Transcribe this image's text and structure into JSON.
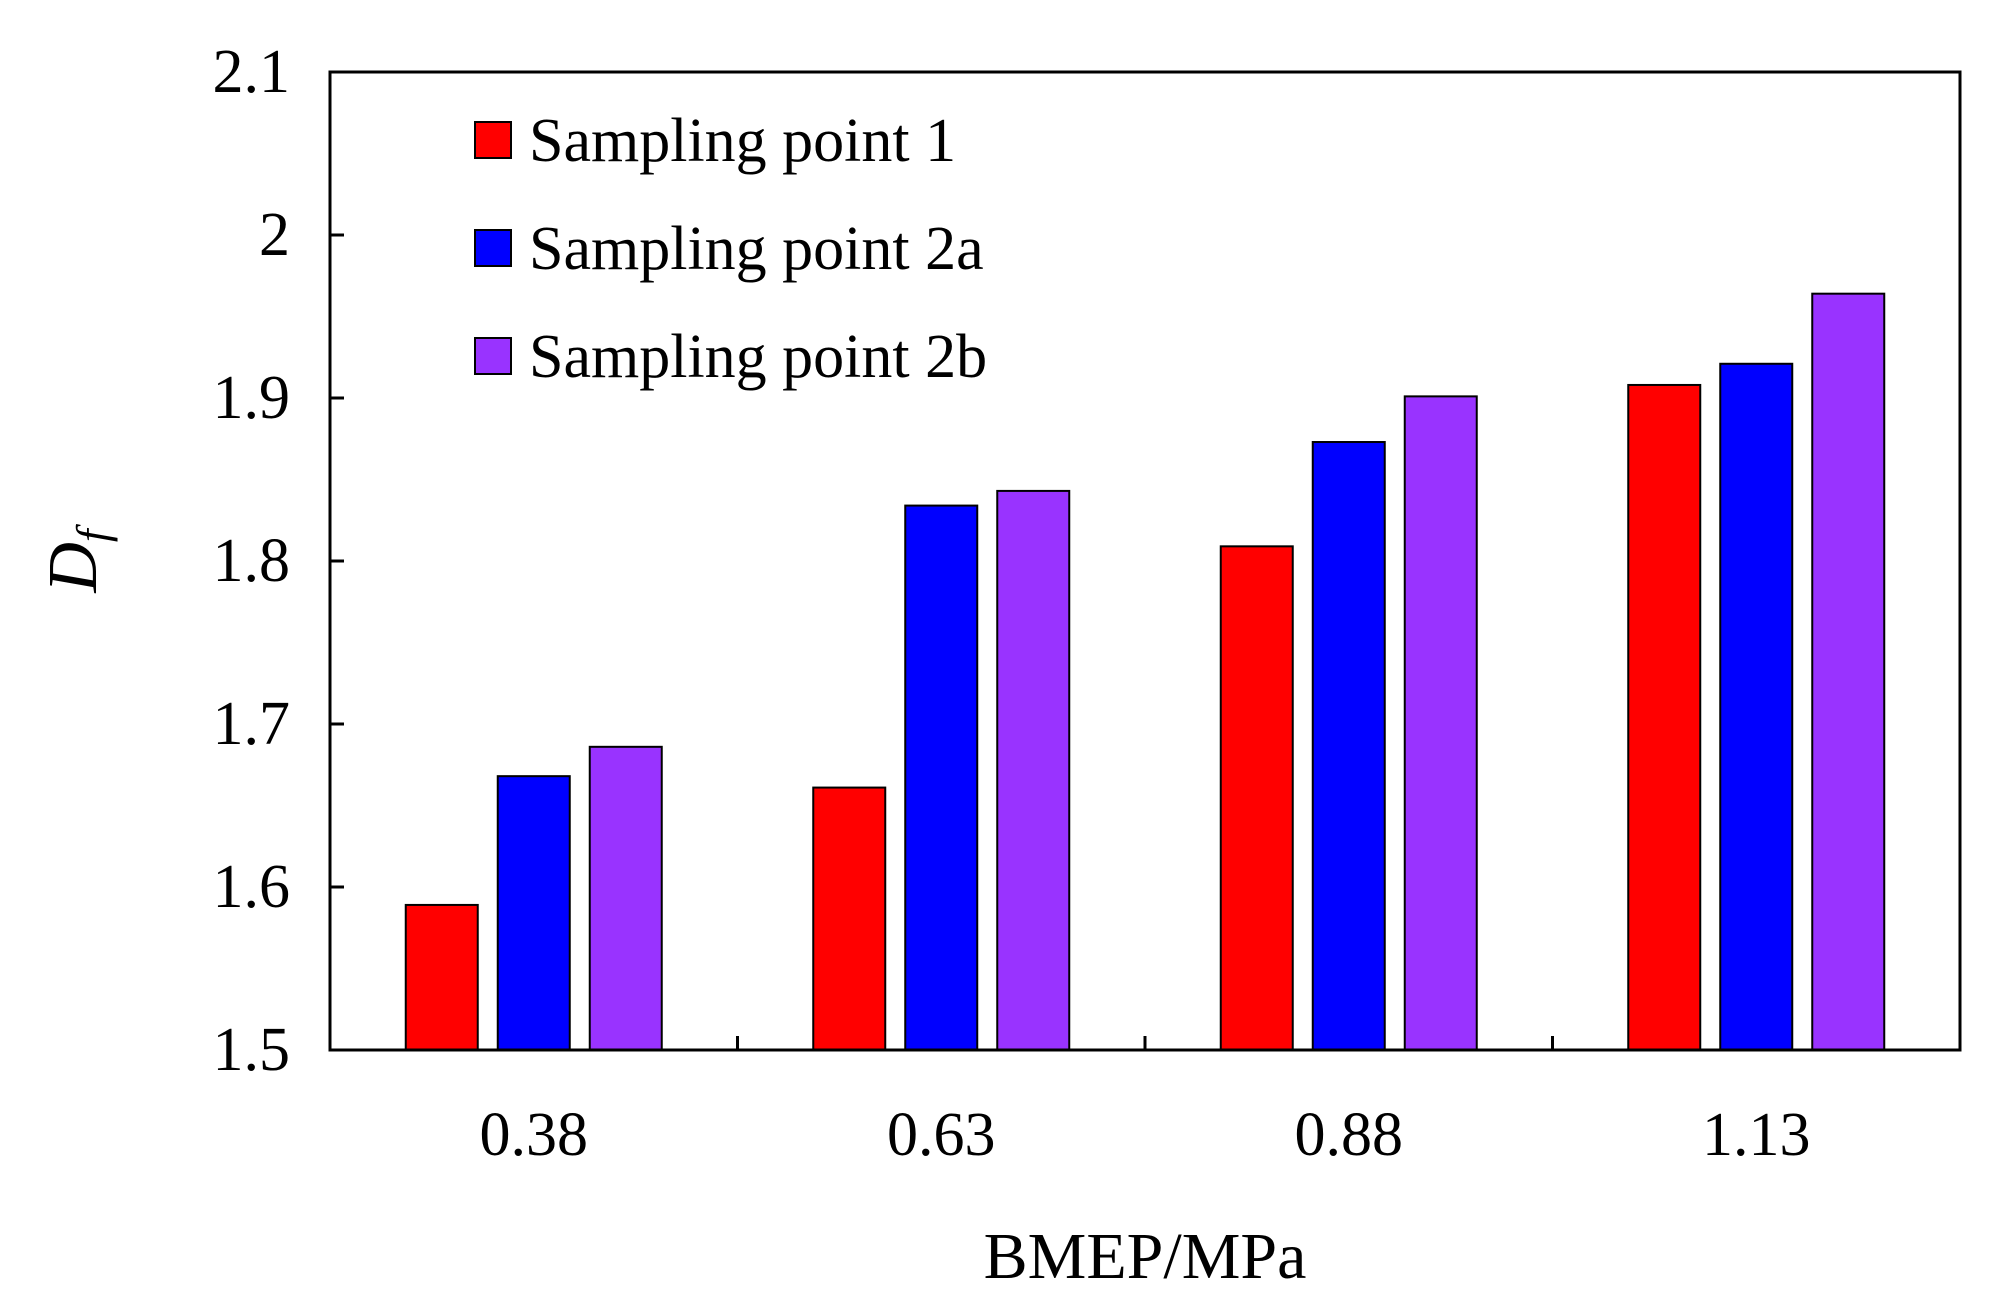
{
  "chart_data": {
    "type": "bar",
    "title": "",
    "xlabel": "BMEP/MPa",
    "ylabel": "D",
    "ylabel_subscript": "f",
    "categories": [
      "0.38",
      "0.63",
      "0.88",
      "1.13"
    ],
    "ylim": [
      1.5,
      2.1
    ],
    "yticks": [
      "1.5",
      "1.6",
      "1.7",
      "1.8",
      "1.9",
      "2",
      "2.1"
    ],
    "grid": false,
    "legend_position": "top-left",
    "series": [
      {
        "name": "Sampling point 1",
        "color": "#ff0000",
        "values": [
          1.589,
          1.661,
          1.809,
          1.908
        ]
      },
      {
        "name": "Sampling point 2a",
        "color": "#0000ff",
        "values": [
          1.668,
          1.834,
          1.873,
          1.921
        ]
      },
      {
        "name": "Sampling point 2b",
        "color": "#9933ff",
        "values": [
          1.686,
          1.843,
          1.901,
          1.964
        ]
      }
    ]
  }
}
